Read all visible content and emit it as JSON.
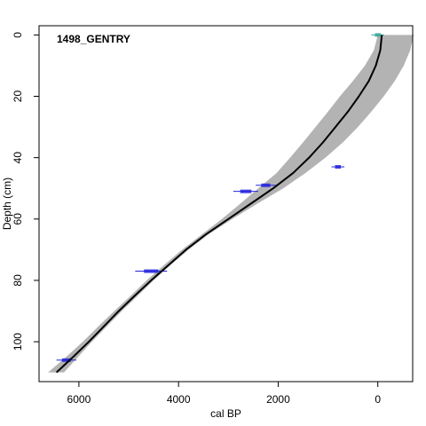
{
  "chart_data": {
    "type": "line",
    "title": "1498_GENTRY",
    "xlabel": "cal BP",
    "ylabel": "Depth (cm)",
    "xlim": [
      6800,
      -700
    ],
    "ylim": [
      113,
      -3
    ],
    "x_reversed": true,
    "y_reversed": true,
    "x_ticks": [
      6000,
      4000,
      2000,
      0
    ],
    "y_ticks": [
      0,
      20,
      40,
      60,
      80,
      100
    ],
    "grid": false,
    "legend": "none",
    "series": [
      {
        "role": "mean",
        "color": "#000000",
        "points": [
          [
            -80,
            0
          ],
          [
            -50,
            5
          ],
          [
            40,
            10
          ],
          [
            180,
            15
          ],
          [
            380,
            20
          ],
          [
            600,
            25
          ],
          [
            850,
            30
          ],
          [
            1100,
            35
          ],
          [
            1380,
            40
          ],
          [
            1700,
            45
          ],
          [
            2100,
            50
          ],
          [
            2550,
            55
          ],
          [
            3000,
            60
          ],
          [
            3450,
            65
          ],
          [
            3850,
            70
          ],
          [
            4200,
            75
          ],
          [
            4550,
            80
          ],
          [
            4880,
            85
          ],
          [
            5200,
            90
          ],
          [
            5500,
            95
          ],
          [
            5800,
            100
          ],
          [
            6120,
            105
          ],
          [
            6450,
            110
          ]
        ]
      },
      {
        "role": "range_min",
        "color": "#b3b3b3",
        "points": [
          [
            -720,
            0
          ],
          [
            -650,
            5
          ],
          [
            -520,
            10
          ],
          [
            -340,
            15
          ],
          [
            -120,
            20
          ],
          [
            130,
            25
          ],
          [
            400,
            30
          ],
          [
            700,
            35
          ],
          [
            1050,
            40
          ],
          [
            1450,
            45
          ],
          [
            1900,
            50
          ],
          [
            2420,
            55
          ],
          [
            2920,
            60
          ],
          [
            3400,
            65
          ],
          [
            3800,
            70
          ],
          [
            4160,
            75
          ],
          [
            4500,
            80
          ],
          [
            4820,
            85
          ],
          [
            5140,
            90
          ],
          [
            5440,
            95
          ],
          [
            5740,
            100
          ],
          [
            6020,
            105
          ],
          [
            6300,
            110
          ]
        ]
      },
      {
        "role": "range_max",
        "color": "#b3b3b3",
        "points": [
          [
            0,
            0
          ],
          [
            80,
            5
          ],
          [
            260,
            10
          ],
          [
            500,
            15
          ],
          [
            760,
            20
          ],
          [
            1000,
            25
          ],
          [
            1250,
            30
          ],
          [
            1500,
            35
          ],
          [
            1760,
            40
          ],
          [
            2030,
            45
          ],
          [
            2400,
            50
          ],
          [
            2760,
            55
          ],
          [
            3130,
            60
          ],
          [
            3530,
            65
          ],
          [
            3930,
            70
          ],
          [
            4290,
            75
          ],
          [
            4640,
            80
          ],
          [
            4960,
            85
          ],
          [
            5290,
            90
          ],
          [
            5610,
            95
          ],
          [
            5920,
            100
          ],
          [
            6260,
            105
          ],
          [
            6620,
            110
          ]
        ]
      }
    ],
    "dates": [
      {
        "age": 0,
        "depth": 0,
        "err": 130,
        "color": "#35a79c"
      },
      {
        "age": 800,
        "depth": 43,
        "err": 130,
        "color": "#2222dd"
      },
      {
        "age": 2250,
        "depth": 49,
        "err": 200,
        "color": "#2222dd"
      },
      {
        "age": 2650,
        "depth": 51,
        "err": 250,
        "color": "#2222dd"
      },
      {
        "age": 4550,
        "depth": 77,
        "err": 320,
        "color": "#2222dd"
      },
      {
        "age": 6250,
        "depth": 106,
        "err": 200,
        "color": "#2222dd"
      }
    ]
  }
}
